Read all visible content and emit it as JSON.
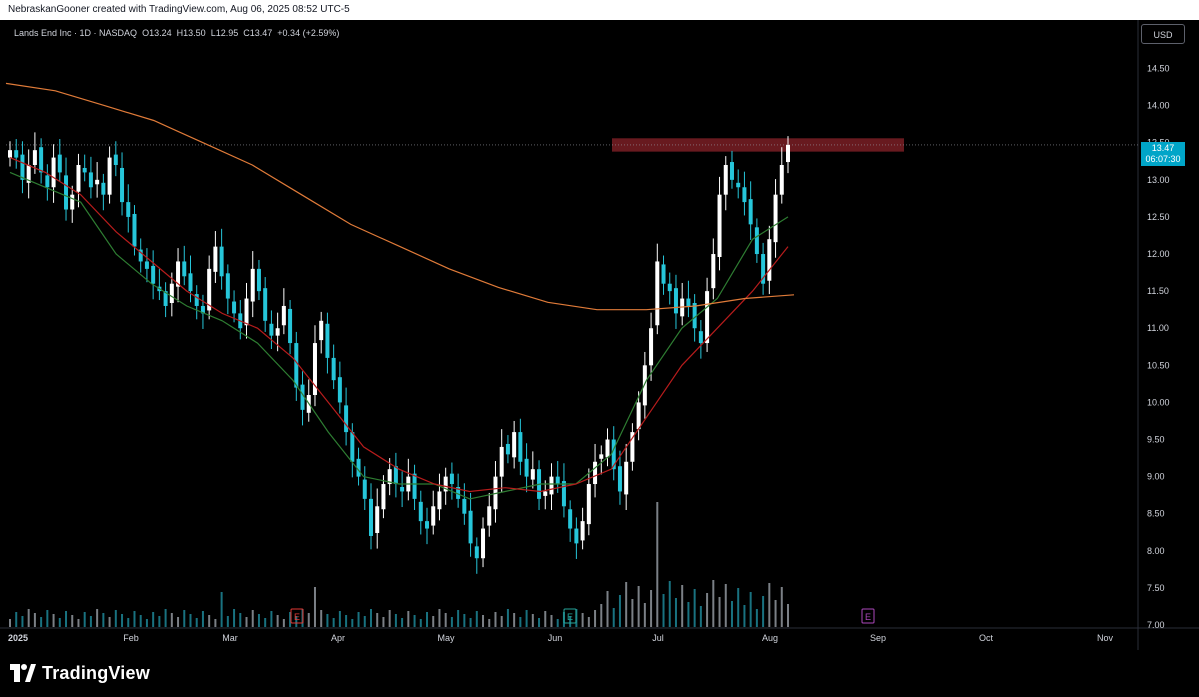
{
  "header": {
    "attribution": "NebraskanGooner created with TradingView.com, Aug 06, 2025 08:52 UTC-5"
  },
  "legend": {
    "symbol": "Lands End Inc · 1D · NASDAQ",
    "open_label": "O",
    "open": "13.24",
    "high_label": "H",
    "high": "13.50",
    "low_label": "L",
    "low": "12.95",
    "close_label": "C",
    "close": "13.47",
    "change": "+0.34 (+2.59%)"
  },
  "currency_button": "USD",
  "last_price_badge": {
    "price": "13.47",
    "countdown": "06:07:30"
  },
  "earnings_markers": [
    "E",
    "E",
    "E"
  ],
  "footer": {
    "brand": "TradingView"
  },
  "colors": {
    "up": "#ffffff",
    "down": "#26c6da",
    "ma_fast": "#2e7d32",
    "ma_mid": "#b71c1c",
    "ma_slow": "#e07b39",
    "resistance_zone": "#7a1f25",
    "accent": "#00a5c8"
  },
  "chart_data": {
    "type": "candlestick",
    "y_ticks": [
      "14.50",
      "14.00",
      "13.50",
      "13.00",
      "12.50",
      "12.00",
      "11.50",
      "11.00",
      "10.50",
      "10.00",
      "9.50",
      "9.00",
      "8.50",
      "8.00",
      "7.50",
      "7.00"
    ],
    "ylim": [
      7.0,
      14.8
    ],
    "x_ticks": [
      "2025",
      "Feb",
      "Mar",
      "Apr",
      "May",
      "Jun",
      "Jul",
      "Aug",
      "Sep",
      "Oct",
      "Nov"
    ],
    "resistance_zone": {
      "low": 13.38,
      "high": 13.56,
      "from": "Jun 20",
      "to": "Aug 28"
    },
    "last_price": 13.47,
    "candles_close": [
      13.4,
      13.3,
      13.0,
      13.2,
      13.4,
      13.1,
      12.9,
      13.3,
      13.1,
      12.6,
      12.8,
      13.2,
      13.1,
      12.9,
      13.0,
      12.8,
      13.3,
      13.2,
      12.7,
      12.5,
      12.1,
      11.9,
      11.8,
      11.6,
      11.5,
      11.3,
      11.6,
      11.9,
      11.7,
      11.5,
      11.3,
      11.2,
      11.8,
      12.1,
      11.7,
      11.4,
      11.2,
      11.0,
      11.4,
      11.8,
      11.5,
      11.1,
      10.9,
      11.0,
      11.3,
      10.8,
      10.2,
      9.9,
      10.1,
      10.8,
      11.1,
      10.6,
      10.3,
      10.0,
      9.6,
      9.2,
      9.0,
      8.7,
      8.2,
      8.6,
      8.9,
      9.1,
      8.9,
      8.8,
      9.0,
      8.7,
      8.4,
      8.3,
      8.6,
      8.8,
      9.0,
      8.9,
      8.7,
      8.5,
      8.1,
      7.9,
      8.3,
      8.6,
      9.0,
      9.4,
      9.3,
      9.6,
      9.2,
      9.0,
      9.1,
      8.7,
      8.8,
      9.0,
      8.9,
      8.6,
      8.3,
      8.1,
      8.4,
      8.9,
      9.2,
      9.3,
      9.5,
      9.1,
      8.8,
      9.2,
      9.6,
      10.0,
      10.5,
      11.0,
      11.9,
      11.6,
      11.5,
      11.2,
      11.4,
      11.3,
      11.0,
      10.8,
      11.5,
      12.0,
      12.8,
      13.2,
      13.0,
      12.9,
      12.7,
      12.4,
      12.0,
      11.6,
      12.2,
      12.8,
      13.2,
      13.47
    ],
    "moving_averages": [
      {
        "color": "ma_fast",
        "values_sampled": [
          13.1,
          12.9,
          12.7,
          12.0,
          11.6,
          11.3,
          11.1,
          10.8,
          10.3,
          9.6,
          9.0,
          8.9,
          8.9,
          8.7,
          8.8,
          8.9,
          8.9,
          9.3,
          10.3,
          11.0,
          11.4,
          12.2,
          12.5
        ]
      },
      {
        "color": "ma_mid",
        "values_sampled": [
          13.3,
          13.1,
          12.8,
          12.3,
          11.9,
          11.5,
          11.2,
          11.0,
          10.6,
          10.0,
          9.4,
          9.1,
          8.9,
          8.8,
          8.85,
          8.8,
          8.9,
          9.1,
          9.8,
          10.5,
          11.0,
          11.5,
          12.1
        ]
      },
      {
        "color": "ma_slow",
        "values_sampled": [
          14.3,
          14.2,
          14.0,
          13.8,
          13.5,
          13.2,
          12.8,
          12.4,
          12.1,
          11.8,
          11.55,
          11.35,
          11.25,
          11.25,
          11.3,
          11.4,
          11.45
        ]
      }
    ],
    "volume_highlights": {
      "max_bar_date": "Jul 1"
    }
  }
}
